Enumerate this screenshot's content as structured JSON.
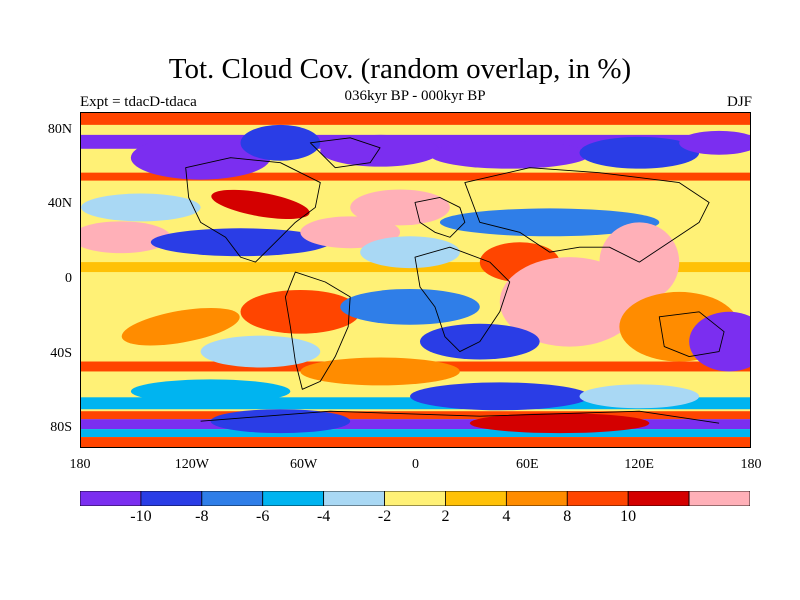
{
  "title": "Tot. Cloud Cov. (random overlap, in %)",
  "subtitle": "036kyr BP - 000kyr BP",
  "left_label": "Expt = tdacD-tdaca",
  "right_label": "DJF",
  "map": {
    "projection": "cylindrical-equidistant",
    "lon_range": [
      -180,
      180
    ],
    "lat_range": [
      -90,
      90
    ],
    "lat_ticks": [
      {
        "value": 80,
        "label": "80N"
      },
      {
        "value": 40,
        "label": "40N"
      },
      {
        "value": 0,
        "label": "0"
      },
      {
        "value": -40,
        "label": "40S"
      },
      {
        "value": -80,
        "label": "80S"
      }
    ],
    "lon_ticks": [
      {
        "value": -180,
        "label": "180"
      },
      {
        "value": -120,
        "label": "120W"
      },
      {
        "value": -60,
        "label": "60W"
      },
      {
        "value": 0,
        "label": "0"
      },
      {
        "value": 60,
        "label": "60E"
      },
      {
        "value": 120,
        "label": "120E"
      },
      {
        "value": 180,
        "label": "180"
      }
    ]
  },
  "colorbar": {
    "colors": [
      "#7b2ef0",
      "#2a3de6",
      "#2f7ee8",
      "#00b4f0",
      "#a9d8f4",
      "#fff176",
      "#ffc107",
      "#ff8c00",
      "#ff4500",
      "#d40000",
      "#ffb0b8"
    ],
    "labels": [
      {
        "after_box": 1,
        "text": "-10"
      },
      {
        "after_box": 2,
        "text": "-8"
      },
      {
        "after_box": 3,
        "text": "-6"
      },
      {
        "after_box": 4,
        "text": "-4"
      },
      {
        "after_box": 5,
        "text": "-2"
      },
      {
        "after_box": 6,
        "text": "2"
      },
      {
        "after_box": 7,
        "text": "4"
      },
      {
        "after_box": 8,
        "text": "8"
      },
      {
        "after_box": 9,
        "text": "10"
      }
    ]
  }
}
